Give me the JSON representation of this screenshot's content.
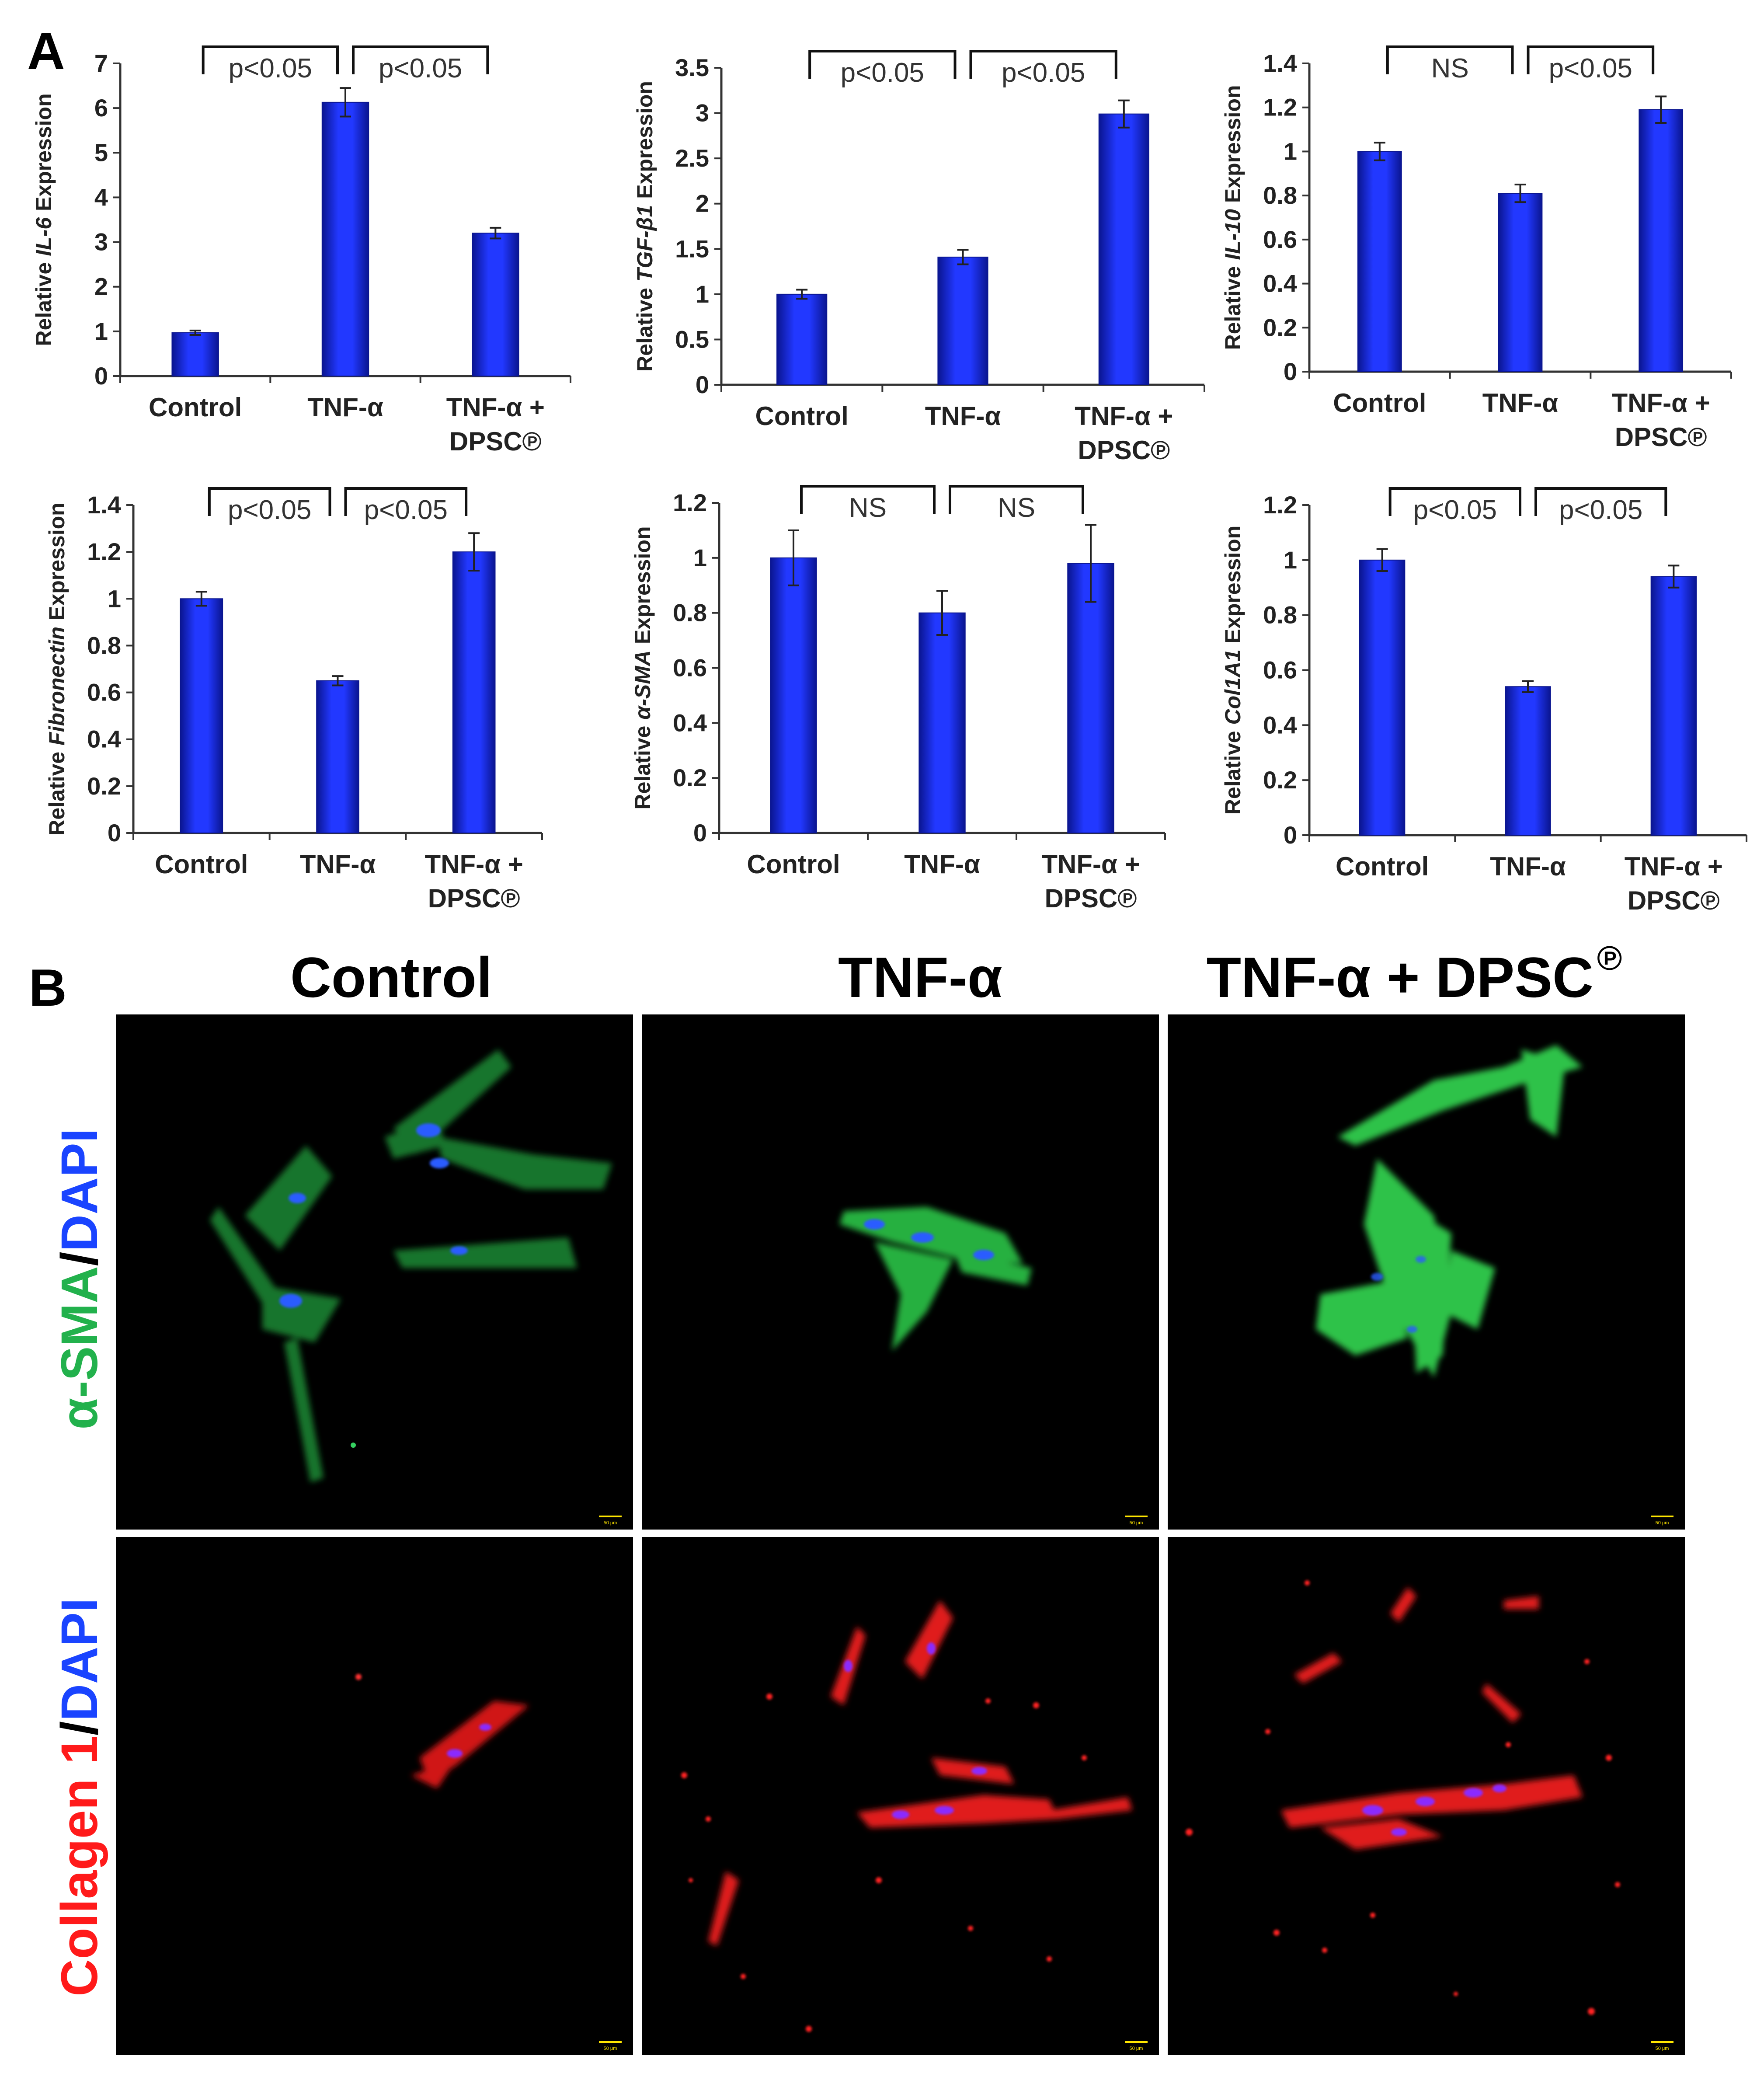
{
  "panel_labels": {
    "a": "A",
    "b": "B"
  },
  "colors": {
    "bar": "#1a2ee8",
    "bar_dark": "#0a1590",
    "green": "#22b14c",
    "red": "#ff1a1a",
    "blue": "#1a44ff"
  },
  "chart_data": [
    {
      "type": "bar",
      "ylabel_prefix": "Relative ",
      "ylabel_gene": "IL-6",
      "ylabel_suffix": " Expression",
      "categories": [
        [
          "Control"
        ],
        [
          "TNF-α"
        ],
        [
          "TNF-α +",
          "DPSC℗"
        ]
      ],
      "values": [
        0.97,
        6.13,
        3.2
      ],
      "errors": [
        0.05,
        0.32,
        0.12
      ],
      "ylim": [
        0,
        7
      ],
      "yticks": [
        "0",
        "1",
        "2",
        "3",
        "4",
        "5",
        "6",
        "7"
      ],
      "significance": [
        {
          "from": 0,
          "to": 1,
          "label": "p<0.05"
        },
        {
          "from": 1,
          "to": 2,
          "label": "p<0.05"
        }
      ]
    },
    {
      "type": "bar",
      "ylabel_prefix": "Relative ",
      "ylabel_gene": "TGF-β1",
      "ylabel_suffix": " Expression",
      "categories": [
        [
          "Control"
        ],
        [
          "TNF-α"
        ],
        [
          "TNF-α +",
          "DPSC℗"
        ]
      ],
      "values": [
        1.0,
        1.41,
        2.99
      ],
      "errors": [
        0.05,
        0.08,
        0.15
      ],
      "ylim": [
        0,
        3.5
      ],
      "yticks": [
        "0",
        "0.5",
        "1",
        "1.5",
        "2",
        "2.5",
        "3",
        "3.5"
      ],
      "significance": [
        {
          "from": 0,
          "to": 1,
          "label": "p<0.05"
        },
        {
          "from": 1,
          "to": 2,
          "label": "p<0.05"
        }
      ]
    },
    {
      "type": "bar",
      "ylabel_prefix": "Relative ",
      "ylabel_gene": "IL-10",
      "ylabel_suffix": " Expression",
      "categories": [
        [
          "Control"
        ],
        [
          "TNF-α"
        ],
        [
          "TNF-α +",
          "DPSC℗"
        ]
      ],
      "values": [
        1.0,
        0.81,
        1.19
      ],
      "errors": [
        0.04,
        0.04,
        0.06
      ],
      "ylim": [
        0,
        1.4
      ],
      "yticks": [
        "0",
        "0.2",
        "0.4",
        "0.6",
        "0.8",
        "1",
        "1.2",
        "1.4"
      ],
      "significance": [
        {
          "from": 0,
          "to": 1,
          "label": "NS"
        },
        {
          "from": 1,
          "to": 2,
          "label": "p<0.05"
        }
      ]
    },
    {
      "type": "bar",
      "ylabel_prefix": "Relative ",
      "ylabel_gene": "Fibronectin",
      "ylabel_suffix": " Expression",
      "categories": [
        [
          "Control"
        ],
        [
          "TNF-α"
        ],
        [
          "TNF-α +",
          "DPSC℗"
        ]
      ],
      "values": [
        1.0,
        0.65,
        1.2
      ],
      "errors": [
        0.03,
        0.02,
        0.08
      ],
      "ylim": [
        0,
        1.4
      ],
      "yticks": [
        "0",
        "0.2",
        "0.4",
        "0.6",
        "0.8",
        "1",
        "1.2",
        "1.4"
      ],
      "significance": [
        {
          "from": 0,
          "to": 1,
          "label": "p<0.05"
        },
        {
          "from": 1,
          "to": 2,
          "label": "p<0.05"
        }
      ]
    },
    {
      "type": "bar",
      "ylabel_prefix": "Relative ",
      "ylabel_gene": "α-SMA",
      "ylabel_suffix": " Expression",
      "categories": [
        [
          "Control"
        ],
        [
          "TNF-α"
        ],
        [
          "TNF-α +",
          "DPSC℗"
        ]
      ],
      "values": [
        1.0,
        0.8,
        0.98
      ],
      "errors": [
        0.1,
        0.08,
        0.14
      ],
      "ylim": [
        0,
        1.2
      ],
      "yticks": [
        "0",
        "0.2",
        "0.4",
        "0.6",
        "0.8",
        "1",
        "1.2"
      ],
      "significance": [
        {
          "from": 0,
          "to": 1,
          "label": "NS"
        },
        {
          "from": 1,
          "to": 2,
          "label": "NS"
        }
      ]
    },
    {
      "type": "bar",
      "ylabel_prefix": "Relative ",
      "ylabel_gene": "Col1A1",
      "ylabel_suffix": " Expression",
      "categories": [
        [
          "Control"
        ],
        [
          "TNF-α"
        ],
        [
          "TNF-α +",
          "DPSC℗"
        ]
      ],
      "values": [
        1.0,
        0.54,
        0.94
      ],
      "errors": [
        0.04,
        0.02,
        0.04
      ],
      "ylim": [
        0,
        1.2
      ],
      "yticks": [
        "0",
        "0.2",
        "0.4",
        "0.6",
        "0.8",
        "1",
        "1.2"
      ],
      "significance": [
        {
          "from": 0,
          "to": 1,
          "label": "p<0.05"
        },
        {
          "from": 1,
          "to": 2,
          "label": "p<0.05"
        }
      ]
    }
  ],
  "micrographs": {
    "column_headers": [
      "Control",
      "TNF-α",
      "TNF-α + DPSC"
    ],
    "column_header_mark": "℗",
    "rows": [
      {
        "stain_part1": "α-SMA",
        "stain_sep": "/",
        "stain_part2": "DAPI",
        "color1": "#22b14c",
        "color2": "#1a44ff"
      },
      {
        "stain_part1": "Collagen 1",
        "stain_sep": "/",
        "stain_part2": "DAPI",
        "color1": "#ff1a1a",
        "color2": "#1a44ff"
      }
    ],
    "scale_bar_label": "50 μm"
  }
}
